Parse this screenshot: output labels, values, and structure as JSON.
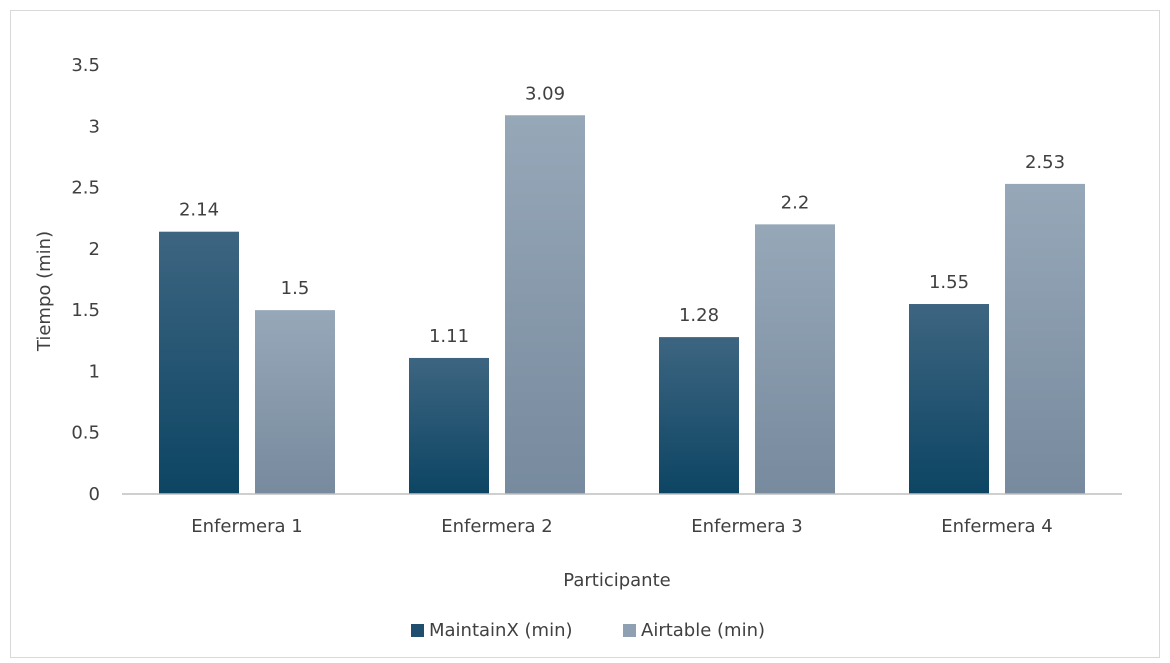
{
  "chart_data": {
    "type": "bar",
    "title": "",
    "xlabel": "Participante",
    "ylabel": "Tiempo (min)",
    "ylim": [
      0,
      3.5
    ],
    "yticks": [
      "0",
      "0.5",
      "1",
      "1.5",
      "2",
      "2.5",
      "3",
      "3.5"
    ],
    "categories": [
      "Enfermera 1",
      "Enfermera 2",
      "Enfermera 3",
      "Enfermera 4"
    ],
    "series": [
      {
        "name": "MaintainX (min)",
        "values": [
          2.14,
          1.11,
          1.28,
          1.55
        ],
        "labels": [
          "2.14",
          "1.11",
          "1.28",
          "1.55"
        ],
        "color": "#1f4e6e"
      },
      {
        "name": "Airtable (min)",
        "values": [
          1.5,
          3.09,
          2.2,
          2.53
        ],
        "labels": [
          "1.5",
          "3.09",
          "2.2",
          "2.53"
        ],
        "color": "#8ea0b2"
      }
    ],
    "grid": false,
    "legend": "bottom"
  }
}
